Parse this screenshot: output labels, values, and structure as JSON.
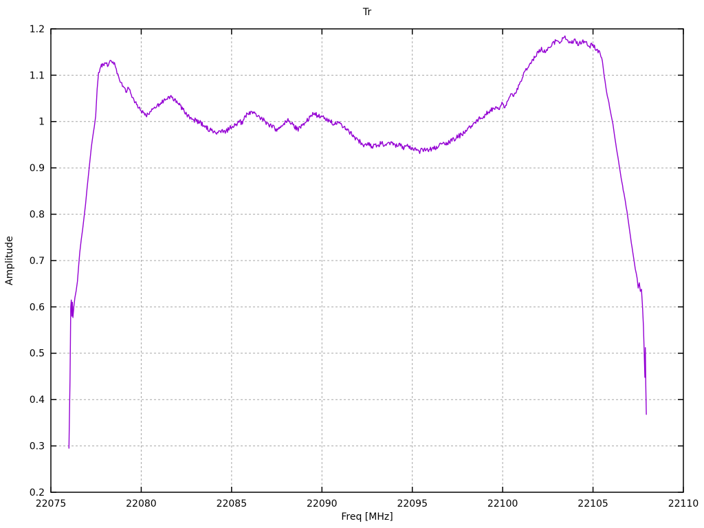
{
  "style": {
    "background": "#ffffff",
    "border_color": "#000000",
    "grid_color": "#a6a6a6",
    "text_color": "#000000"
  },
  "chart_data": {
    "type": "line",
    "title": "Tr",
    "xlabel": "Freq [MHz]",
    "ylabel": "Amplitude",
    "xlim": [
      22075,
      22110
    ],
    "ylim": [
      0.2,
      1.2
    ],
    "grid": true,
    "legend": "none",
    "xtick_values": [
      22075,
      22080,
      22085,
      22090,
      22095,
      22100,
      22105,
      22110
    ],
    "xtick_labels": [
      "22075",
      "22080",
      "22085",
      "22090",
      "22095",
      "22100",
      "22105",
      "22110"
    ],
    "ytick_values": [
      0.2,
      0.3,
      0.4,
      0.5,
      0.6,
      0.7,
      0.8,
      0.9,
      1.0,
      1.1,
      1.2
    ],
    "ytick_labels": [
      "0.2",
      "0.3",
      "0.4",
      "0.5",
      "0.6",
      "0.7",
      "0.8",
      "0.9",
      "1",
      "1.1",
      "1.2"
    ],
    "noise_amplitude": 0.006,
    "series": [
      {
        "name": "Tr",
        "color": "#9400d3",
        "points": [
          [
            22076.0,
            0.295
          ],
          [
            22076.03,
            0.37
          ],
          [
            22076.06,
            0.445
          ],
          [
            22076.08,
            0.52
          ],
          [
            22076.1,
            0.6
          ],
          [
            22076.13,
            0.615
          ],
          [
            22076.16,
            0.58
          ],
          [
            22076.19,
            0.61
          ],
          [
            22076.22,
            0.577
          ],
          [
            22076.27,
            0.6
          ],
          [
            22076.33,
            0.62
          ],
          [
            22076.4,
            0.635
          ],
          [
            22076.47,
            0.655
          ],
          [
            22076.54,
            0.69
          ],
          [
            22076.6,
            0.718
          ],
          [
            22076.68,
            0.745
          ],
          [
            22076.76,
            0.768
          ],
          [
            22076.84,
            0.795
          ],
          [
            22076.92,
            0.822
          ],
          [
            22077.0,
            0.855
          ],
          [
            22077.08,
            0.885
          ],
          [
            22077.16,
            0.915
          ],
          [
            22077.24,
            0.945
          ],
          [
            22077.32,
            0.968
          ],
          [
            22077.4,
            0.988
          ],
          [
            22077.48,
            1.012
          ],
          [
            22077.56,
            1.07
          ],
          [
            22077.64,
            1.105
          ],
          [
            22077.76,
            1.118
          ],
          [
            22077.9,
            1.122
          ],
          [
            22078.05,
            1.127
          ],
          [
            22078.18,
            1.122
          ],
          [
            22078.28,
            1.131
          ],
          [
            22078.4,
            1.125
          ],
          [
            22078.52,
            1.128
          ],
          [
            22078.62,
            1.112
          ],
          [
            22078.75,
            1.095
          ],
          [
            22078.88,
            1.085
          ],
          [
            22079.0,
            1.078
          ],
          [
            22079.15,
            1.065
          ],
          [
            22079.3,
            1.072
          ],
          [
            22079.45,
            1.058
          ],
          [
            22079.6,
            1.045
          ],
          [
            22079.78,
            1.035
          ],
          [
            22079.95,
            1.025
          ],
          [
            22080.12,
            1.018
          ],
          [
            22080.3,
            1.012
          ],
          [
            22080.48,
            1.02
          ],
          [
            22080.66,
            1.027
          ],
          [
            22080.85,
            1.032
          ],
          [
            22081.05,
            1.038
          ],
          [
            22081.25,
            1.045
          ],
          [
            22081.45,
            1.05
          ],
          [
            22081.65,
            1.055
          ],
          [
            22081.85,
            1.048
          ],
          [
            22082.05,
            1.04
          ],
          [
            22082.3,
            1.026
          ],
          [
            22082.55,
            1.012
          ],
          [
            22082.8,
            1.006
          ],
          [
            22083.05,
            1.002
          ],
          [
            22083.3,
            0.996
          ],
          [
            22083.55,
            0.988
          ],
          [
            22083.8,
            0.982
          ],
          [
            22084.05,
            0.978
          ],
          [
            22084.25,
            0.977
          ],
          [
            22084.45,
            0.982
          ],
          [
            22084.65,
            0.977
          ],
          [
            22084.85,
            0.984
          ],
          [
            22085.05,
            0.99
          ],
          [
            22085.25,
            0.995
          ],
          [
            22085.45,
            1.0
          ],
          [
            22085.6,
            0.996
          ],
          [
            22085.76,
            1.012
          ],
          [
            22085.95,
            1.016
          ],
          [
            22086.2,
            1.021
          ],
          [
            22086.45,
            1.014
          ],
          [
            22086.7,
            1.005
          ],
          [
            22086.95,
            0.997
          ],
          [
            22087.2,
            0.99
          ],
          [
            22087.5,
            0.981
          ],
          [
            22087.75,
            0.99
          ],
          [
            22088.0,
            0.999
          ],
          [
            22088.16,
            1.002
          ],
          [
            22088.4,
            0.992
          ],
          [
            22088.65,
            0.983
          ],
          [
            22088.9,
            0.992
          ],
          [
            22089.15,
            1.002
          ],
          [
            22089.35,
            1.01
          ],
          [
            22089.6,
            1.018
          ],
          [
            22089.8,
            1.01
          ],
          [
            22090.0,
            1.013
          ],
          [
            22090.2,
            1.006
          ],
          [
            22090.45,
            1.0
          ],
          [
            22090.7,
            0.994
          ],
          [
            22090.9,
            0.997
          ],
          [
            22091.1,
            0.992
          ],
          [
            22091.3,
            0.985
          ],
          [
            22091.5,
            0.979
          ],
          [
            22091.7,
            0.97
          ],
          [
            22091.95,
            0.962
          ],
          [
            22092.2,
            0.953
          ],
          [
            22092.35,
            0.948
          ],
          [
            22092.55,
            0.952
          ],
          [
            22092.8,
            0.945
          ],
          [
            22093.05,
            0.95
          ],
          [
            22093.3,
            0.953
          ],
          [
            22093.55,
            0.946
          ],
          [
            22093.8,
            0.955
          ],
          [
            22094.05,
            0.947
          ],
          [
            22094.3,
            0.952
          ],
          [
            22094.55,
            0.943
          ],
          [
            22094.8,
            0.948
          ],
          [
            22095.05,
            0.942
          ],
          [
            22095.25,
            0.938
          ],
          [
            22095.45,
            0.936
          ],
          [
            22095.65,
            0.94
          ],
          [
            22095.9,
            0.937
          ],
          [
            22096.15,
            0.942
          ],
          [
            22096.4,
            0.945
          ],
          [
            22096.6,
            0.949
          ],
          [
            22096.8,
            0.95
          ],
          [
            22097.05,
            0.956
          ],
          [
            22097.3,
            0.962
          ],
          [
            22097.55,
            0.968
          ],
          [
            22097.75,
            0.972
          ],
          [
            22097.95,
            0.98
          ],
          [
            22098.15,
            0.988
          ],
          [
            22098.35,
            0.994
          ],
          [
            22098.55,
            1.001
          ],
          [
            22098.75,
            1.008
          ],
          [
            22098.95,
            1.012
          ],
          [
            22099.2,
            1.02
          ],
          [
            22099.45,
            1.027
          ],
          [
            22099.65,
            1.034
          ],
          [
            22099.82,
            1.028
          ],
          [
            22100.0,
            1.04
          ],
          [
            22100.12,
            1.028
          ],
          [
            22100.28,
            1.046
          ],
          [
            22100.45,
            1.058
          ],
          [
            22100.6,
            1.052
          ],
          [
            22100.76,
            1.065
          ],
          [
            22100.92,
            1.078
          ],
          [
            22101.08,
            1.095
          ],
          [
            22101.25,
            1.108
          ],
          [
            22101.42,
            1.118
          ],
          [
            22101.6,
            1.13
          ],
          [
            22101.78,
            1.14
          ],
          [
            22101.95,
            1.15
          ],
          [
            22102.15,
            1.158
          ],
          [
            22102.35,
            1.15
          ],
          [
            22102.55,
            1.162
          ],
          [
            22102.75,
            1.168
          ],
          [
            22102.95,
            1.174
          ],
          [
            22103.15,
            1.167
          ],
          [
            22103.35,
            1.18
          ],
          [
            22103.45,
            1.183
          ],
          [
            22103.6,
            1.175
          ],
          [
            22103.8,
            1.168
          ],
          [
            22104.0,
            1.178
          ],
          [
            22104.2,
            1.164
          ],
          [
            22104.4,
            1.175
          ],
          [
            22104.6,
            1.17
          ],
          [
            22104.8,
            1.161
          ],
          [
            22105.0,
            1.166
          ],
          [
            22105.2,
            1.156
          ],
          [
            22105.4,
            1.147
          ],
          [
            22105.52,
            1.13
          ],
          [
            22105.62,
            1.098
          ],
          [
            22105.75,
            1.065
          ],
          [
            22105.88,
            1.04
          ],
          [
            22106.0,
            1.015
          ],
          [
            22106.1,
            0.995
          ],
          [
            22106.22,
            0.962
          ],
          [
            22106.34,
            0.932
          ],
          [
            22106.46,
            0.902
          ],
          [
            22106.6,
            0.868
          ],
          [
            22106.74,
            0.838
          ],
          [
            22106.88,
            0.806
          ],
          [
            22107.0,
            0.772
          ],
          [
            22107.12,
            0.738
          ],
          [
            22107.24,
            0.708
          ],
          [
            22107.34,
            0.682
          ],
          [
            22107.44,
            0.662
          ],
          [
            22107.5,
            0.64
          ],
          [
            22107.56,
            0.652
          ],
          [
            22107.62,
            0.634
          ],
          [
            22107.68,
            0.638
          ],
          [
            22107.74,
            0.6
          ],
          [
            22107.79,
            0.558
          ],
          [
            22107.83,
            0.505
          ],
          [
            22107.87,
            0.448
          ],
          [
            22107.895,
            0.512
          ],
          [
            22107.92,
            0.43
          ],
          [
            22107.95,
            0.368
          ]
        ]
      }
    ]
  }
}
